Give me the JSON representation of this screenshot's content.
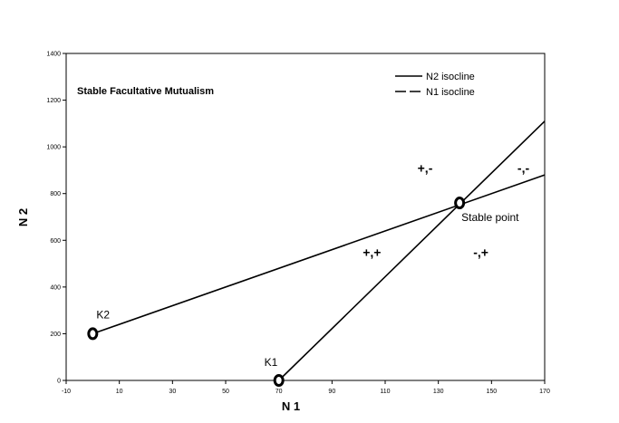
{
  "chart_data": {
    "type": "line",
    "title": "Stable Facultative Mutualism",
    "xlabel": "N 1",
    "ylabel": "N 2",
    "xlim": [
      -10,
      170
    ],
    "ylim": [
      0,
      1400
    ],
    "x_ticks": [
      -10,
      10,
      30,
      50,
      70,
      90,
      110,
      130,
      150,
      170
    ],
    "y_ticks": [
      0,
      200,
      400,
      600,
      800,
      1000,
      1200,
      1400
    ],
    "grid": false,
    "legend_position": "top-right",
    "series": [
      {
        "name": "N2 isocline",
        "style": "solid",
        "x": [
          70,
          170
        ],
        "y": [
          0,
          1110
        ]
      },
      {
        "name": "N1 isocline",
        "style": "solid",
        "x": [
          0,
          170
        ],
        "y": [
          200,
          880
        ]
      }
    ],
    "points": [
      {
        "label": "K2",
        "x": 0,
        "y": 200
      },
      {
        "label": "K1",
        "x": 70,
        "y": 0
      },
      {
        "label": "Stable point",
        "x": 138,
        "y": 760
      }
    ],
    "region_labels": [
      {
        "text": "+,-",
        "x": 125,
        "y": 890
      },
      {
        "text": "-,-",
        "x": 162,
        "y": 890
      },
      {
        "text": "+,+",
        "x": 105,
        "y": 530
      },
      {
        "text": "-,+",
        "x": 146,
        "y": 530
      }
    ]
  }
}
